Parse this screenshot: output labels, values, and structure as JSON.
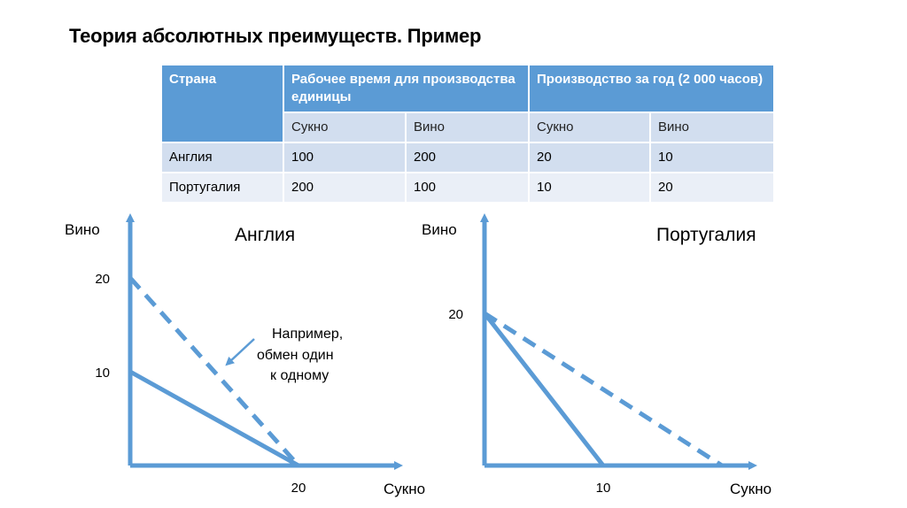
{
  "title": "Теория абсолютных преимуществ. Пример",
  "table": {
    "col_country": "Страна",
    "col_labor": "Рабочее время для производства единицы",
    "col_output": "Производство за год (2 000 часов)",
    "sub_headers": [
      "Сукно",
      "Вино",
      "Сукно",
      "Вино"
    ],
    "rows": [
      {
        "country": "Англия",
        "values": [
          "100",
          "200",
          "20",
          "10"
        ]
      },
      {
        "country": "Португалия",
        "values": [
          "200",
          "100",
          "10",
          "20"
        ]
      }
    ]
  },
  "colors": {
    "axis": "#5b9bd5",
    "line": "#5b9bd5",
    "header": "#5b9bd5"
  },
  "chart_data": [
    {
      "type": "line",
      "title": "Англия",
      "xlabel": "Сукно",
      "ylabel": "Вино",
      "y_ticks": [
        "20",
        "10"
      ],
      "x_ticks": [
        "20"
      ],
      "annotation": "Например, обмен один к одному",
      "series": [
        {
          "style": "solid",
          "points": [
            [
              0,
              10
            ],
            [
              20,
              0
            ]
          ]
        },
        {
          "style": "dashed",
          "points": [
            [
              0,
              20
            ],
            [
              20,
              0
            ]
          ]
        }
      ]
    },
    {
      "type": "line",
      "title": "Португалия",
      "xlabel": "Сукно",
      "ylabel": "Вино",
      "y_ticks": [
        "20"
      ],
      "x_ticks": [
        "10"
      ],
      "series": [
        {
          "style": "solid",
          "points": [
            [
              0,
              20
            ],
            [
              10,
              0
            ]
          ]
        },
        {
          "style": "dashed",
          "points": [
            [
              0,
              20
            ],
            [
              20,
              0
            ]
          ]
        }
      ]
    }
  ]
}
